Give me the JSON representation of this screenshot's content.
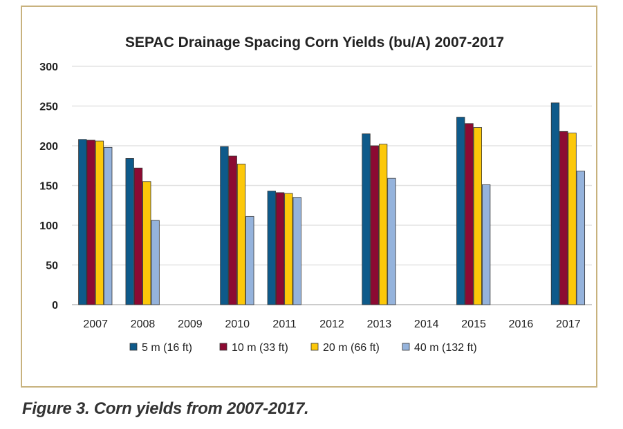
{
  "chart_data": {
    "type": "bar",
    "title": "SEPAC Drainage Spacing Corn Yields (bu/A) 2007-2017",
    "xlabel": "",
    "ylabel": "",
    "ylim": [
      0,
      300
    ],
    "yticks": [
      "0",
      "50",
      "100",
      "150",
      "200",
      "250",
      "300"
    ],
    "grid": true,
    "legend_position": "bottom",
    "categories": [
      "2007",
      "2008",
      "2009",
      "2010",
      "2011",
      "2012",
      "2013",
      "2014",
      "2015",
      "2016",
      "2017"
    ],
    "series": [
      {
        "name": "5 m (16 ft)",
        "color": "#0e5a8a",
        "values": [
          208,
          184,
          null,
          199,
          143,
          null,
          215,
          null,
          236,
          null,
          254
        ]
      },
      {
        "name": "10 m (33 ft)",
        "color": "#8c0a32",
        "values": [
          207,
          172,
          null,
          187,
          141,
          null,
          200,
          null,
          228,
          null,
          218
        ]
      },
      {
        "name": "20 m (66 ft)",
        "color": "#fcc80a",
        "values": [
          206,
          155,
          null,
          177,
          140,
          null,
          202,
          null,
          223,
          null,
          216
        ]
      },
      {
        "name": "40 m (132 ft)",
        "color": "#95b3dc",
        "values": [
          198,
          106,
          null,
          111,
          135,
          null,
          159,
          null,
          151,
          null,
          168
        ]
      }
    ]
  },
  "caption": "Figure 3. Corn yields from 2007-2017."
}
